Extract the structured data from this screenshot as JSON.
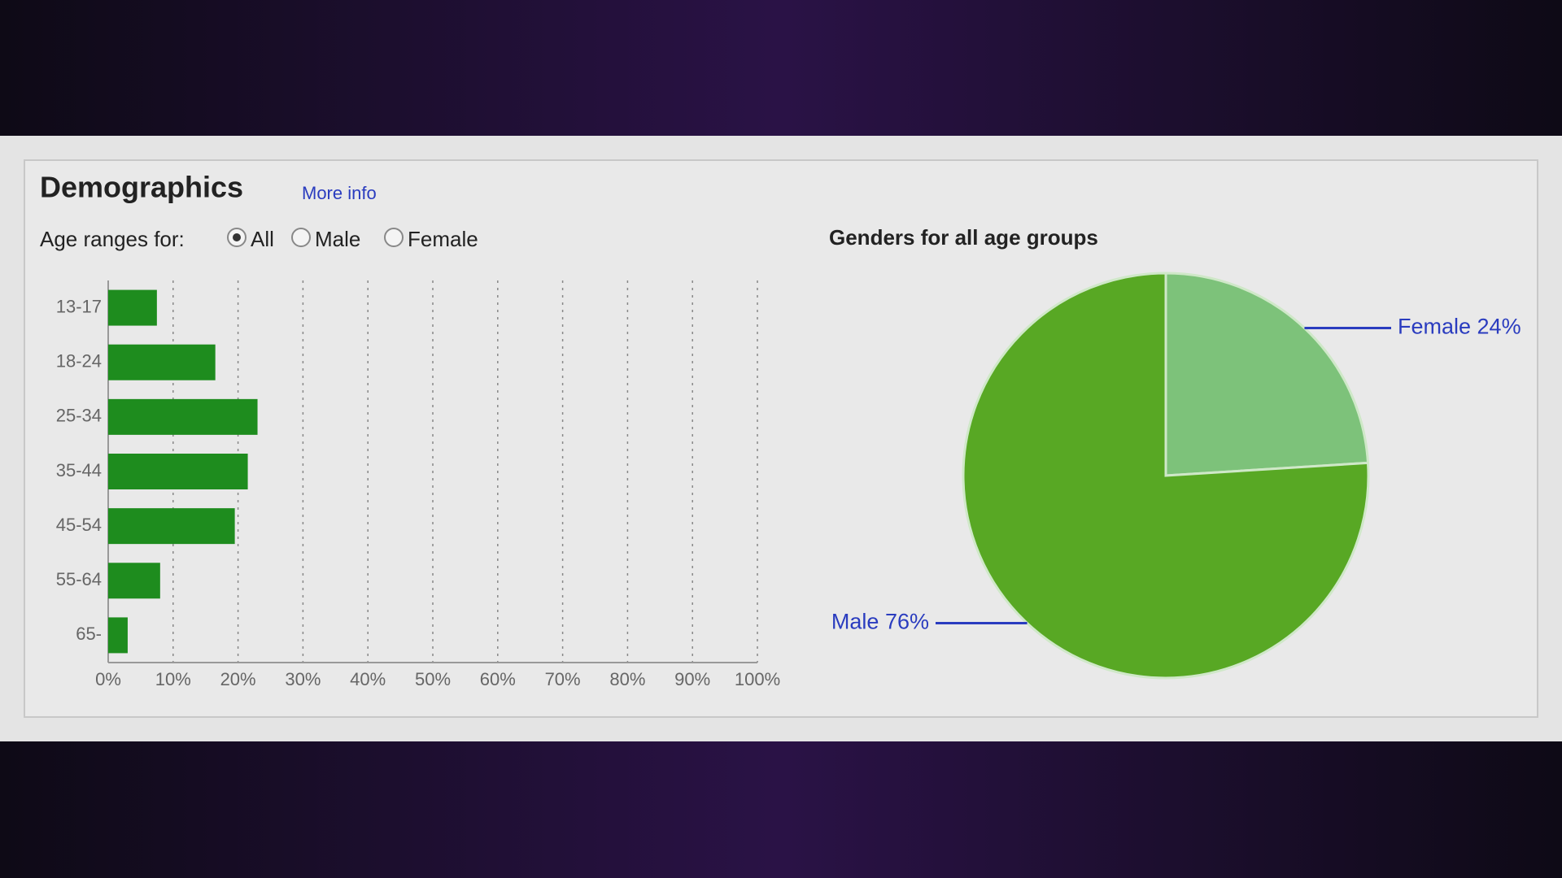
{
  "header": {
    "title": "Demographics",
    "link": "More info",
    "filter_label": "Age ranges for:",
    "options": [
      "All",
      "Male",
      "Female"
    ]
  },
  "chart_data": [
    {
      "type": "bar",
      "orientation": "horizontal",
      "categories": [
        "13-17",
        "18-24",
        "25-34",
        "35-44",
        "45-54",
        "55-64",
        "65-"
      ],
      "values": [
        7.5,
        16.5,
        23,
        21.5,
        19.5,
        8,
        3
      ],
      "color": "#1e8c1e",
      "xlim": [
        0,
        100
      ],
      "xticks": [
        {
          "value": 0,
          "label": "0%"
        },
        {
          "value": 10,
          "label": "10%"
        },
        {
          "value": 20,
          "label": "20%"
        },
        {
          "value": 30,
          "label": "30%"
        },
        {
          "value": 40,
          "label": "40%"
        },
        {
          "value": 50,
          "label": "50%"
        },
        {
          "value": 60,
          "label": "60%"
        },
        {
          "value": 70,
          "label": "70%"
        },
        {
          "value": 80,
          "label": "80%"
        },
        {
          "value": 90,
          "label": "90%"
        },
        {
          "value": 100,
          "label": "100%"
        }
      ],
      "grid": true
    },
    {
      "type": "pie",
      "title": "Genders for all age groups",
      "values": [
        24,
        76
      ],
      "value_labels": [
        "Female 24%",
        "Male 76%"
      ],
      "colors": [
        "#7dc27a",
        "#58a824"
      ]
    }
  ]
}
